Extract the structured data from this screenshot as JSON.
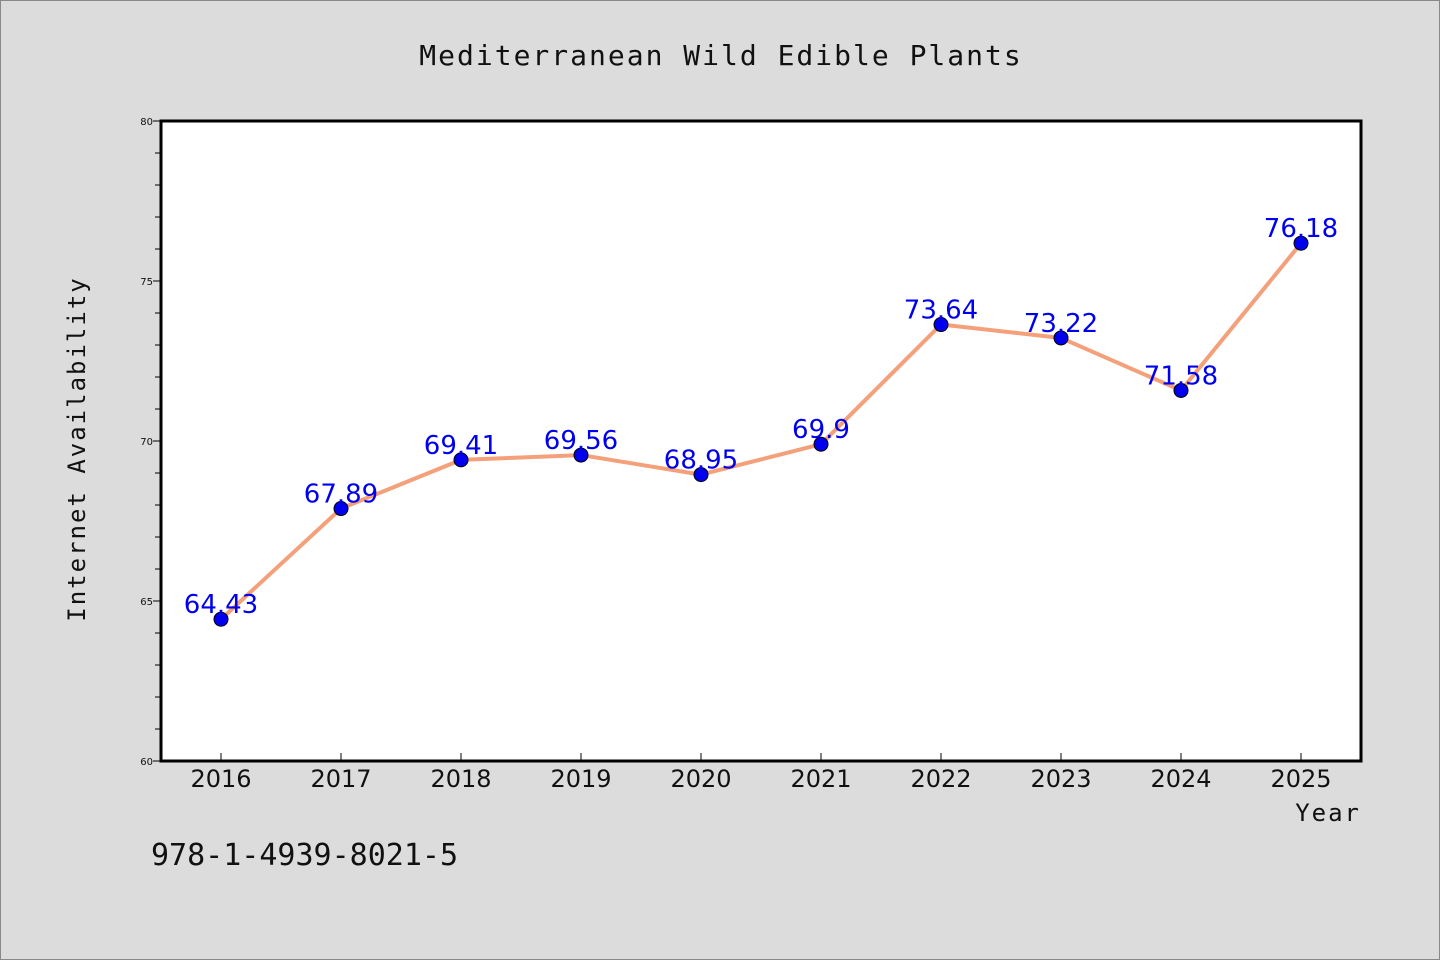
{
  "chart_data": {
    "type": "line",
    "title": "Mediterranean Wild Edible Plants",
    "xlabel": "Year",
    "ylabel": "Internet Availability",
    "categories": [
      "2016",
      "2017",
      "2018",
      "2019",
      "2020",
      "2021",
      "2022",
      "2023",
      "2024",
      "2025"
    ],
    "series": [
      {
        "values": [
          64.43,
          67.89,
          69.41,
          69.56,
          68.95,
          69.9,
          73.64,
          73.22,
          71.58,
          76.18
        ],
        "labels": [
          "64.43",
          "67.89",
          "69.41",
          "69.56",
          "68.95",
          "69.9",
          "73.64",
          "73.22",
          "71.58",
          "76.18"
        ]
      }
    ],
    "ylim": [
      60,
      80
    ],
    "y_ticks": [
      60,
      65,
      70,
      75,
      80
    ],
    "y_minor_step": 1,
    "grid": false,
    "legend": "none"
  },
  "annotation": {
    "isbn": "978-1-4939-8021-5"
  },
  "style": {
    "line_color": "#f4a07a",
    "marker_color": "#0000ee",
    "label_color": "#0000ee",
    "plot_background": "#ffffff",
    "figure_background": "#dcdcdc",
    "axis_color": "#000000"
  }
}
